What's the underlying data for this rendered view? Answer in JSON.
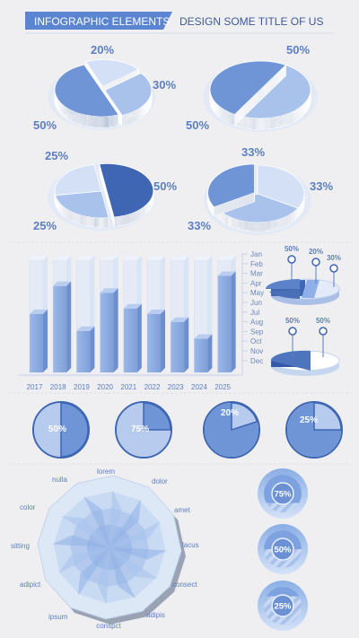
{
  "header": {
    "left_title": "INFOGRAPHIC ELEMENTS",
    "right_title": "DESIGN SOME TITLE OF US"
  },
  "colors": {
    "dark": "#3e66b3",
    "mid": "#6f95d6",
    "light": "#a8c2ec",
    "pale": "#d3e0f5",
    "text": "#5b7fc0",
    "bg": "#efeff1"
  },
  "chart_data": [
    {
      "type": "pie",
      "id": "pie3d-1",
      "slices": [
        {
          "label": "20%",
          "value": 20
        },
        {
          "label": "30%",
          "value": 30
        },
        {
          "label": "50%",
          "value": 50
        }
      ]
    },
    {
      "type": "pie",
      "id": "pie3d-2",
      "slices": [
        {
          "label": "50%",
          "value": 50
        },
        {
          "label": "50%",
          "value": 50
        }
      ]
    },
    {
      "type": "pie",
      "id": "pie3d-3",
      "slices": [
        {
          "label": "25%",
          "value": 25
        },
        {
          "label": "50%",
          "value": 50
        },
        {
          "label": "25%",
          "value": 25
        }
      ]
    },
    {
      "type": "pie",
      "id": "pie3d-4",
      "slices": [
        {
          "label": "33%",
          "value": 33
        },
        {
          "label": "33%",
          "value": 33
        },
        {
          "label": "33%",
          "value": 33
        }
      ]
    },
    {
      "type": "bar",
      "id": "bar-years",
      "categories": [
        "2017",
        "2018",
        "2019",
        "2020",
        "2021",
        "2022",
        "2023",
        "2024",
        "2025"
      ],
      "values": [
        52,
        77,
        37,
        71,
        57,
        52,
        45,
        30,
        86
      ],
      "ylim": [
        0,
        100
      ],
      "legend": [
        "Jan",
        "Feb",
        "Mar",
        "Apr",
        "May",
        "Jun",
        "Jul",
        "Aug",
        "Sep",
        "Oct",
        "Nov",
        "Dec"
      ]
    },
    {
      "type": "pie",
      "id": "ring-pie-1",
      "slices": [
        {
          "label": "50%",
          "value": 50
        },
        {
          "label": "30%",
          "value": 30
        },
        {
          "label": "20%",
          "value": 20
        }
      ]
    },
    {
      "type": "pie",
      "id": "ring-pie-2",
      "slices": [
        {
          "label": "50%",
          "value": 50
        },
        {
          "label": "50%",
          "value": 50
        }
      ]
    },
    {
      "type": "pie",
      "id": "flat-pies",
      "slices": [
        {
          "label": "50%",
          "value": 50
        },
        {
          "label": "75%",
          "value": 75
        },
        {
          "label": "20%",
          "value": 20
        },
        {
          "label": "25%",
          "value": 25
        }
      ]
    },
    {
      "type": "radar",
      "id": "radar",
      "axes": [
        "lorem",
        "dolor",
        "amet",
        "lacus",
        "consect",
        "adipis",
        "conspct",
        "ipsum",
        "adipict",
        "sitting",
        "color",
        "nulla"
      ]
    },
    {
      "type": "gauge",
      "id": "gauges",
      "values": [
        {
          "label": "75%",
          "value": 75
        },
        {
          "label": "50%",
          "value": 50
        },
        {
          "label": "25%",
          "value": 25
        }
      ]
    }
  ]
}
